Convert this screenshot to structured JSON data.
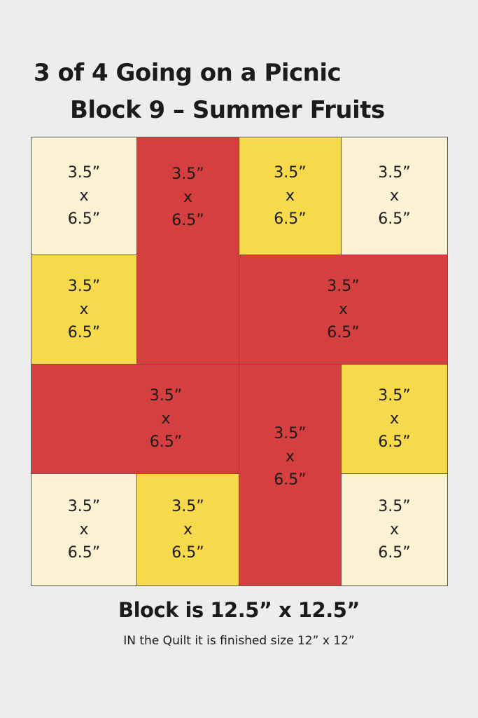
{
  "title": {
    "line1": "3 of 4  Going on a Picnic",
    "line2": "Block 9 – Summer Fruits"
  },
  "colors": {
    "background": "#ededed",
    "cream": "#fbf1d3",
    "yellow": "#f7d94c",
    "red": "#d63f3f"
  },
  "pieces": [
    {
      "color": "cream",
      "width": "3.5”",
      "x": "x",
      "height": "6.5”"
    },
    {
      "color": "red",
      "width": "3.5”",
      "x": "x",
      "height": "6.5”"
    },
    {
      "color": "yellow",
      "width": "3.5”",
      "x": "x",
      "height": "6.5”"
    },
    {
      "color": "cream",
      "width": "3.5”",
      "x": "x",
      "height": "6.5”"
    },
    {
      "color": "yellow",
      "width": "3.5”",
      "x": "x",
      "height": "6.5”"
    },
    {
      "color": "red",
      "width": "3.5”",
      "x": "x",
      "height": "6.5”"
    },
    {
      "color": "red",
      "width": "3.5”",
      "x": "x",
      "height": "6.5”"
    },
    {
      "color": "red",
      "width": "3.5”",
      "x": "x",
      "height": "6.5”"
    },
    {
      "color": "yellow",
      "width": "3.5”",
      "x": "x",
      "height": "6.5”"
    },
    {
      "color": "cream",
      "width": "3.5”",
      "x": "x",
      "height": "6.5”"
    },
    {
      "color": "yellow",
      "width": "3.5”",
      "x": "x",
      "height": "6.5”"
    },
    {
      "color": "cream",
      "width": "3.5”",
      "x": "x",
      "height": "6.5”"
    }
  ],
  "footer": {
    "size": "Block is 12.5” x 12.5”",
    "note": "IN the Quilt it is finished size 12” x 12”"
  }
}
